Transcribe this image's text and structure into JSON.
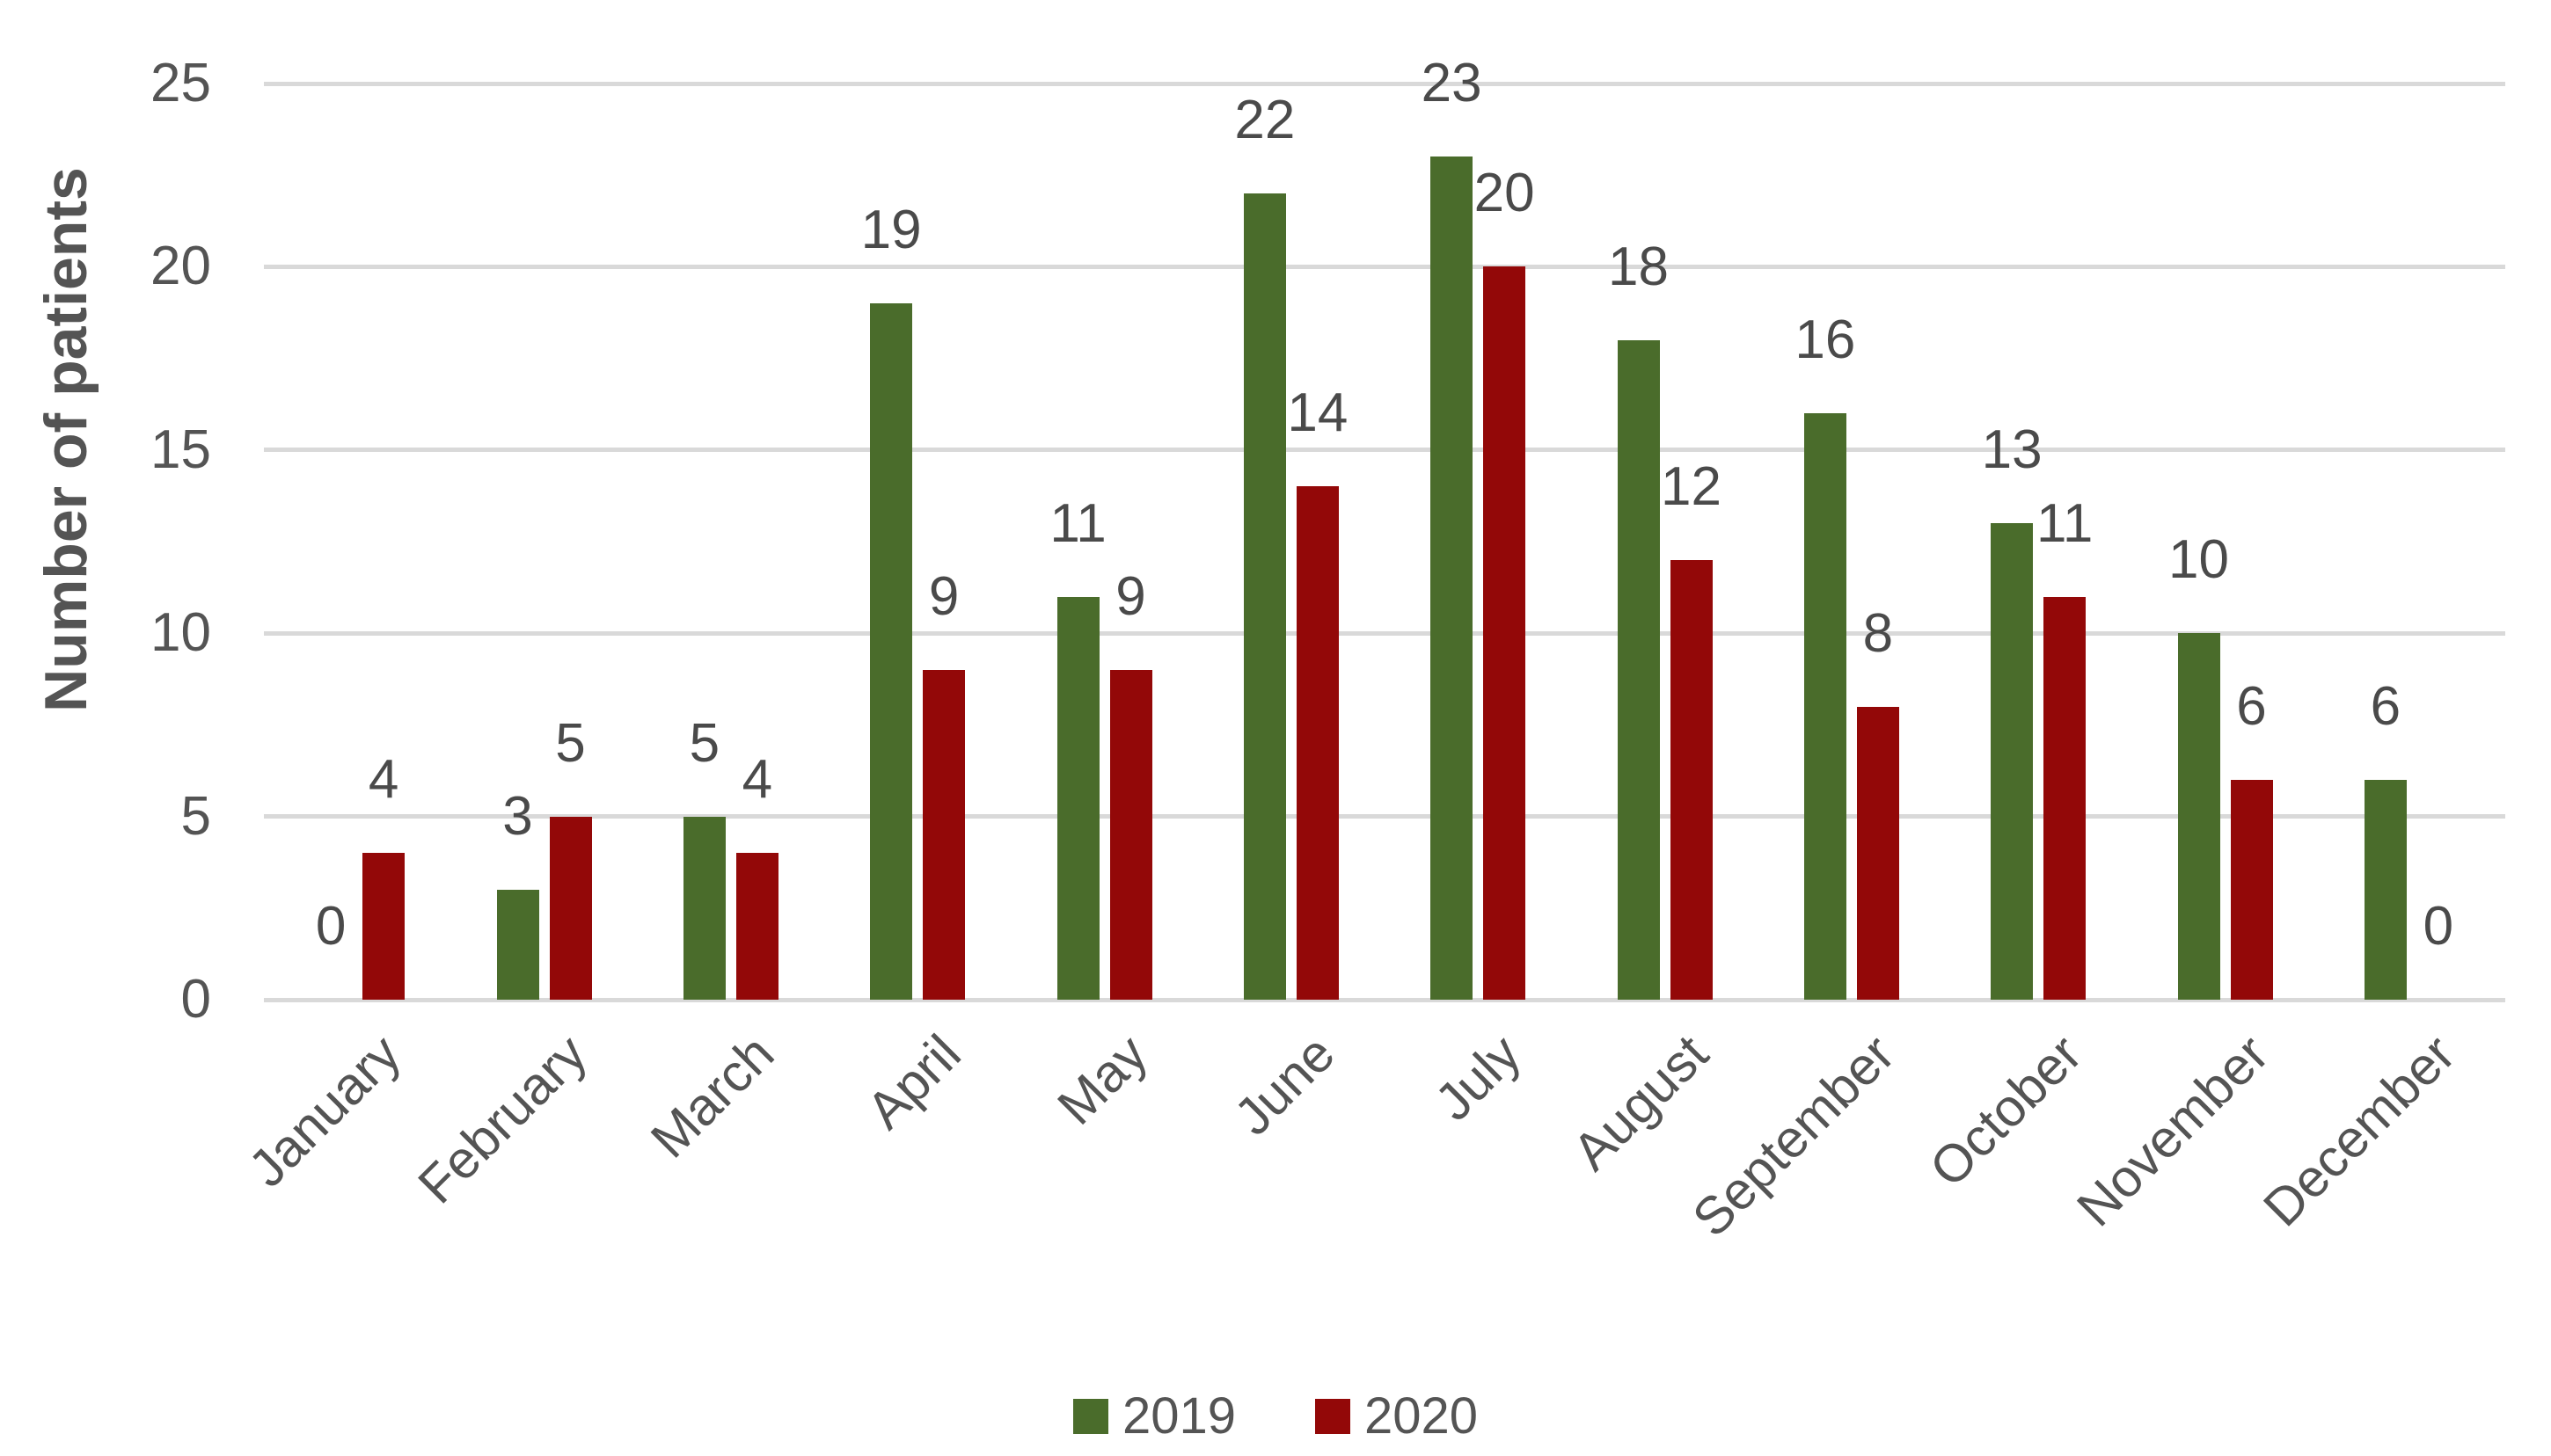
{
  "chart_data": {
    "type": "bar",
    "title": "",
    "xlabel": "",
    "ylabel": "Number of patients",
    "categories": [
      "January",
      "February",
      "March",
      "April",
      "May",
      "June",
      "July",
      "August",
      "September",
      "October",
      "November",
      "December"
    ],
    "series": [
      {
        "name": "2019",
        "color": "#4A6C2B",
        "values": [
          0,
          3,
          5,
          19,
          11,
          22,
          23,
          18,
          16,
          13,
          10,
          6
        ]
      },
      {
        "name": "2020",
        "color": "#930808",
        "values": [
          4,
          5,
          4,
          9,
          9,
          14,
          20,
          12,
          8,
          11,
          6,
          0
        ]
      }
    ],
    "ylim": [
      0,
      25
    ],
    "yticks": [
      0,
      5,
      10,
      15,
      20,
      25
    ],
    "grid": "horizontal",
    "gridline_color": "#D9D9D9",
    "axis_text_color": "#545454",
    "data_label_color": "#4A4A4A",
    "data_labels_visible": true,
    "legend_position": "bottom"
  }
}
